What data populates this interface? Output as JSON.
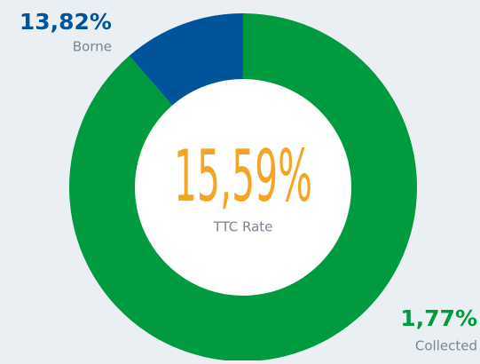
{
  "chart_data": {
    "type": "donut",
    "categories": [
      "Borne",
      "Collected"
    ],
    "values": [
      13.82,
      1.77
    ],
    "value_labels": [
      "13,82%",
      "1,77%"
    ],
    "colors": [
      "#009b3e",
      "#00549a"
    ],
    "label_colors": [
      "#00549a",
      "#009b3e"
    ],
    "center_label": "15,59%",
    "center_text": "TTC Rate",
    "center_color": "#f5a524"
  }
}
